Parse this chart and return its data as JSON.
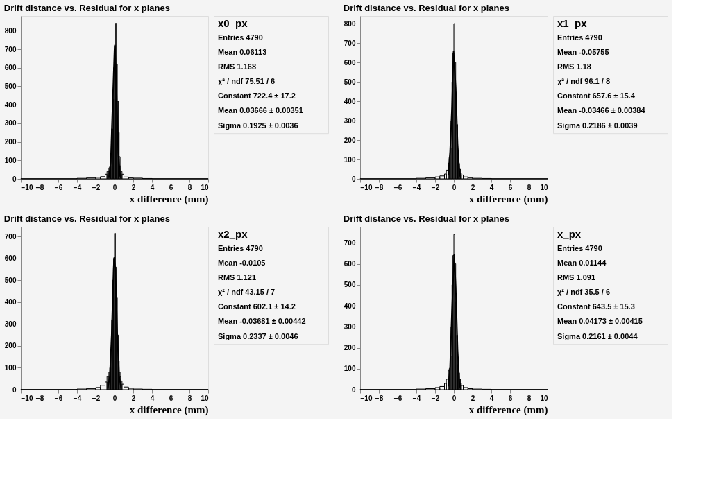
{
  "chart_data": [
    {
      "type": "histogram",
      "title": "Drift distance vs. Residual for x planes",
      "xlabel": "x difference (mm)",
      "color": "#000000",
      "bins": [
        -10,
        -4,
        -3,
        -2,
        -1.5,
        -1,
        -0.8,
        -0.6,
        -0.5,
        -0.4,
        -0.3,
        -0.2,
        -0.1,
        0,
        0.1,
        0.2,
        0.3,
        0.4,
        0.5,
        0.6,
        0.7,
        0.8,
        1,
        1.5,
        2,
        3,
        4,
        10
      ],
      "values": [
        1,
        3,
        5,
        8,
        12,
        25,
        40,
        60,
        70,
        140,
        270,
        430,
        600,
        720,
        840,
        620,
        420,
        250,
        120,
        70,
        40,
        25,
        10,
        6,
        4,
        2,
        1
      ],
      "series": [
        {
          "type": "line",
          "color": "#000000",
          "x": [
            -0.6,
            -0.4,
            -0.2,
            0,
            0.04,
            0.2,
            0.4,
            0.6,
            0.7
          ],
          "values": [
            5,
            90,
            400,
            700,
            722,
            500,
            140,
            15,
            4
          ]
        }
      ],
      "xlim": [
        -10,
        10
      ],
      "xticks": [
        -10,
        -8,
        -6,
        -4,
        -2,
        0,
        2,
        4,
        6,
        8,
        10
      ],
      "ylim": [
        0,
        880
      ],
      "yticks": [
        0,
        100,
        200,
        300,
        400,
        500,
        600,
        700,
        800
      ],
      "grid": false,
      "annotations": [
        "x0_px",
        "Entries 4790",
        "Mean 0.06113",
        "RMS 1.168",
        "χ² / ndf 75.51 / 6",
        "Constant 722.4 ± 17.2",
        "Mean 0.03666 ± 0.00351",
        "Sigma 0.1925 ± 0.0036"
      ]
    },
    {
      "type": "histogram",
      "title": "Drift distance vs. Residual for x planes",
      "xlabel": "x difference (mm)",
      "color": "#000000",
      "bins": [
        -10,
        -4,
        -3,
        -2,
        -1.5,
        -1,
        -0.8,
        -0.6,
        -0.5,
        -0.4,
        -0.3,
        -0.2,
        -0.1,
        0,
        0.1,
        0.2,
        0.3,
        0.4,
        0.5,
        0.6,
        0.7,
        0.8,
        1,
        1.5,
        2,
        3,
        4,
        10
      ],
      "values": [
        1,
        3,
        5,
        10,
        15,
        25,
        45,
        80,
        110,
        160,
        300,
        500,
        650,
        800,
        600,
        450,
        280,
        140,
        80,
        50,
        30,
        20,
        10,
        6,
        3,
        2,
        1
      ],
      "series": [
        {
          "type": "line",
          "color": "#000000",
          "x": [
            -0.6,
            -0.4,
            -0.2,
            -0.03,
            0.2,
            0.4,
            0.6,
            0.7
          ],
          "values": [
            20,
            140,
            370,
            657,
            470,
            180,
            30,
            10
          ]
        }
      ],
      "xlim": [
        -10,
        10
      ],
      "xticks": [
        -10,
        -8,
        -6,
        -4,
        -2,
        0,
        2,
        4,
        6,
        8,
        10
      ],
      "ylim": [
        0,
        840
      ],
      "yticks": [
        0,
        100,
        200,
        300,
        400,
        500,
        600,
        700,
        800
      ],
      "grid": false,
      "annotations": [
        "x1_px",
        "Entries 4790",
        "Mean -0.05755",
        "RMS 1.18",
        "χ² / ndf 96.1 / 8",
        "Constant 657.6 ± 15.4",
        "Mean -0.03466 ± 0.00384",
        "Sigma 0.2186 ± 0.0039"
      ]
    },
    {
      "type": "histogram",
      "title": "Drift distance vs. Residual for x planes",
      "xlabel": "x difference (mm)",
      "color": "#000000",
      "bins": [
        -10,
        -4,
        -3,
        -2,
        -1.5,
        -1,
        -0.8,
        -0.6,
        -0.5,
        -0.4,
        -0.3,
        -0.2,
        -0.1,
        0,
        0.1,
        0.2,
        0.3,
        0.4,
        0.5,
        0.6,
        0.7,
        0.8,
        1,
        1.5,
        2,
        3,
        4,
        10
      ],
      "values": [
        1,
        3,
        5,
        10,
        20,
        35,
        60,
        80,
        100,
        180,
        320,
        500,
        600,
        715,
        560,
        420,
        250,
        130,
        80,
        60,
        40,
        25,
        12,
        6,
        3,
        2,
        1
      ],
      "series": [
        {
          "type": "line",
          "color": "#000000",
          "x": [
            -0.7,
            -0.5,
            -0.3,
            -0.1,
            -0.04,
            0.1,
            0.3,
            0.5,
            0.7
          ],
          "values": [
            10,
            60,
            250,
            550,
            602,
            550,
            250,
            60,
            10
          ]
        }
      ],
      "xlim": [
        -10,
        10
      ],
      "xticks": [
        -10,
        -8,
        -6,
        -4,
        -2,
        0,
        2,
        4,
        6,
        8,
        10
      ],
      "ylim": [
        0,
        745
      ],
      "yticks": [
        0,
        100,
        200,
        300,
        400,
        500,
        600,
        700
      ],
      "grid": false,
      "annotations": [
        "x2_px",
        "Entries 4790",
        "Mean -0.0105",
        "RMS 1.121",
        "χ² / ndf 43.15 / 7",
        "Constant 602.1 ± 14.2",
        "Mean -0.03681 ± 0.00442",
        "Sigma 0.2337 ± 0.0046"
      ]
    },
    {
      "type": "histogram",
      "title": "Drift distance vs. Residual for x planes",
      "xlabel": "x difference (mm)",
      "color": "#000000",
      "bins": [
        -10,
        -4,
        -3,
        -2,
        -1.5,
        -1,
        -0.8,
        -0.6,
        -0.5,
        -0.4,
        -0.3,
        -0.2,
        -0.1,
        0,
        0.1,
        0.2,
        0.3,
        0.4,
        0.5,
        0.6,
        0.7,
        0.8,
        1,
        1.5,
        2,
        3,
        4,
        10
      ],
      "values": [
        1,
        3,
        5,
        10,
        15,
        30,
        50,
        90,
        100,
        160,
        300,
        500,
        640,
        740,
        600,
        420,
        260,
        120,
        80,
        50,
        30,
        20,
        10,
        5,
        3,
        2,
        1
      ],
      "series": [
        {
          "type": "line",
          "color": "#000000",
          "x": [
            -0.6,
            -0.4,
            -0.2,
            0.04,
            0.2,
            0.4,
            0.6,
            0.7
          ],
          "values": [
            15,
            110,
            380,
            643,
            490,
            190,
            25,
            8
          ]
        }
      ],
      "xlim": [
        -10,
        10
      ],
      "xticks": [
        -10,
        -8,
        -6,
        -4,
        -2,
        0,
        2,
        4,
        6,
        8,
        10
      ],
      "ylim": [
        0,
        777
      ],
      "yticks": [
        0,
        100,
        200,
        300,
        400,
        500,
        600,
        700
      ],
      "grid": false,
      "annotations": [
        "x_px",
        "Entries 4790",
        "Mean 0.01144",
        "RMS 1.091",
        "χ² / ndf 35.5 / 6",
        "Constant 643.5 ± 15.3",
        "Mean 0.04173 ± 0.00415",
        "Sigma 0.2161 ± 0.0044"
      ]
    }
  ]
}
